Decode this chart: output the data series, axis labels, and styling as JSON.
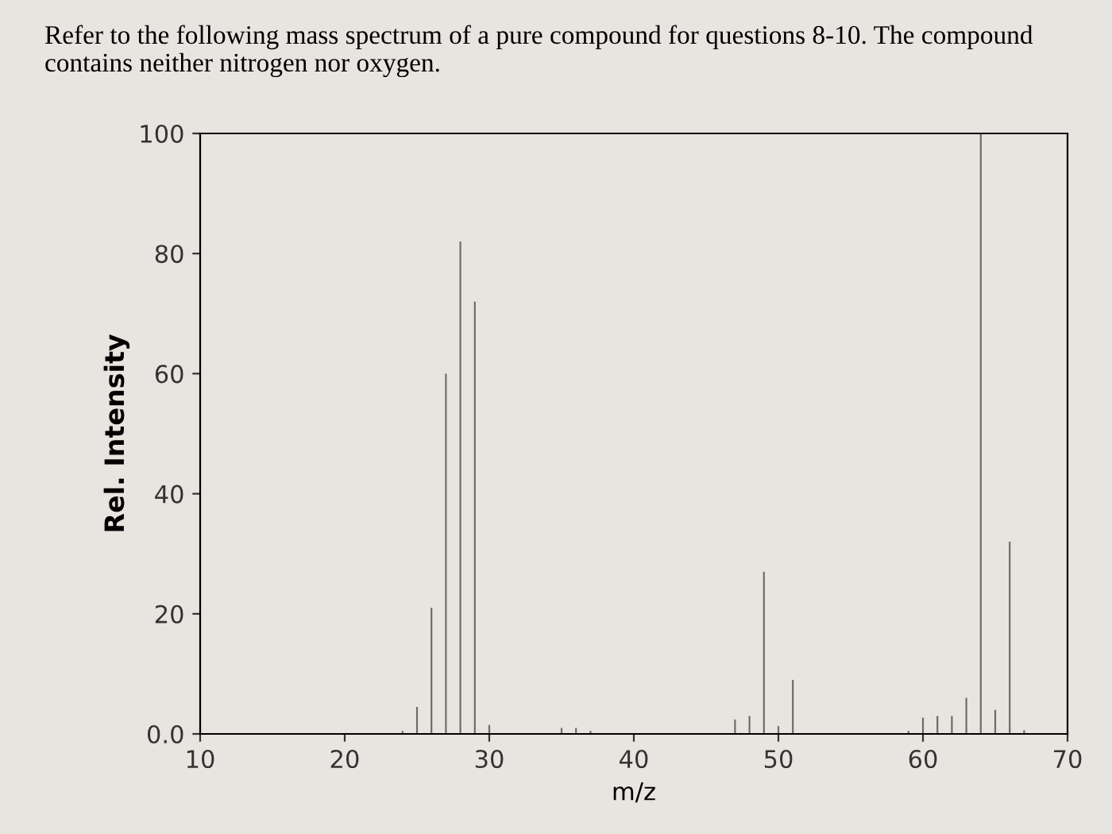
{
  "chart_data": {
    "type": "bar",
    "title": "Refer to the following mass spectrum of a pure compound for questions 8-10. The compound contains neither nitrogen nor oxygen.",
    "xlabel": "m/z",
    "ylabel": "Rel. Intensity",
    "x": [
      24,
      25,
      26,
      27,
      28,
      29,
      30,
      35,
      36,
      37,
      47,
      48,
      49,
      50,
      51,
      59,
      60,
      61,
      62,
      63,
      64,
      65,
      66,
      67
    ],
    "values": [
      0.5,
      4.5,
      21,
      60,
      82,
      72,
      1.5,
      1,
      1,
      0.5,
      2.4,
      3,
      27,
      1.3,
      9,
      0.5,
      2.7,
      3,
      3,
      6,
      100,
      4,
      32,
      0.6
    ],
    "color": "#6e6a68",
    "xlim": [
      10,
      70
    ],
    "xticks": [
      10,
      20,
      30,
      40,
      50,
      60,
      70
    ],
    "ylim": [
      0,
      100
    ],
    "yticks": [
      {
        "value": 0,
        "label": "0.0"
      },
      20,
      40,
      60,
      80,
      100
    ],
    "grid": false
  }
}
